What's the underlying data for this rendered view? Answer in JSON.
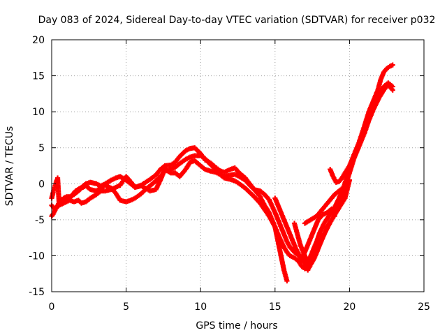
{
  "chart_data": {
    "type": "scatter",
    "title": "Day 083 of 2024, Sidereal Day-to-day VTEC variation (SDTVAR) for receiver p032",
    "xlabel": "GPS time / hours",
    "ylabel": "SDTVAR / TECUs",
    "xlim": [
      0,
      25
    ],
    "ylim": [
      -15,
      20
    ],
    "xticks": [
      0,
      5,
      10,
      15,
      20,
      25
    ],
    "yticks": [
      -15,
      -10,
      -5,
      0,
      5,
      10,
      15,
      20
    ],
    "grid": true,
    "legend": "none",
    "series_color": "#ff0000",
    "marker": "plus",
    "series": [
      {
        "x": [
          0.0,
          0.1,
          0.2,
          0.3,
          0.4,
          0.5,
          0.6,
          0.8,
          1.0,
          1.2,
          1.5,
          1.8,
          2.0,
          2.3,
          2.6,
          3.0,
          3.3,
          3.6,
          4.0,
          4.3,
          4.6,
          5.0,
          5.3,
          5.6,
          6.0,
          6.3,
          6.6,
          7.0,
          7.3,
          7.6,
          8.0,
          8.3,
          8.6,
          9.0,
          9.3,
          9.6,
          10.0,
          10.3,
          10.6,
          11.0,
          11.3,
          11.6,
          12.0,
          12.3,
          12.6,
          13.0,
          13.3,
          13.6,
          14.0,
          14.3,
          14.6,
          15.0,
          15.3,
          15.6,
          15.8,
          16.0,
          16.3,
          16.6,
          16.8,
          17.0,
          17.2,
          17.5,
          17.8,
          18.0,
          18.3,
          18.6,
          19.0,
          19.3,
          19.6,
          20.0,
          20.3,
          20.6,
          21.0,
          21.3,
          21.6,
          22.0,
          22.3,
          22.6,
          22.9
        ],
        "y": [
          -4.5,
          -4.2,
          -3.8,
          -3.3,
          -3.0,
          -2.6,
          -2.3,
          -2.0,
          -1.8,
          -1.8,
          -1.5,
          -1.0,
          -0.6,
          -0.3,
          -0.8,
          -1.0,
          -0.5,
          -0.2,
          -0.6,
          -1.3,
          -2.3,
          -2.5,
          -2.3,
          -2.0,
          -1.4,
          -0.8,
          -0.3,
          0.4,
          1.0,
          1.8,
          2.0,
          2.3,
          2.8,
          3.4,
          3.7,
          3.9,
          3.9,
          3.5,
          2.8,
          2.0,
          1.3,
          0.8,
          0.6,
          0.4,
          0.0,
          -0.6,
          -1.2,
          -1.8,
          -2.7,
          -3.6,
          -4.5,
          -6.0,
          -7.5,
          -8.8,
          -9.5,
          -10.0,
          -10.3,
          -10.8,
          -11.5,
          -11.8,
          -11.0,
          -9.5,
          -8.0,
          -6.8,
          -5.5,
          -4.5,
          -3.3,
          -2.0,
          -0.5,
          2.0,
          4.0,
          5.5,
          7.5,
          9.3,
          10.8,
          12.5,
          13.5,
          14.0,
          13.5
        ]
      },
      {
        "x": [
          0.0,
          0.1,
          0.2,
          0.3,
          0.4,
          0.5,
          0.6,
          0.8,
          1.0,
          1.2,
          1.5,
          1.8,
          2.0,
          2.3,
          2.6,
          3.0,
          3.3,
          3.6,
          4.0,
          4.3,
          4.6,
          5.0,
          5.3,
          5.6,
          6.0,
          6.3,
          6.6,
          7.0,
          7.3,
          7.6,
          8.0,
          8.3,
          8.6,
          9.0,
          9.3,
          9.6,
          10.0,
          10.3,
          10.6,
          11.0,
          11.3,
          11.6,
          12.0,
          12.3,
          12.6,
          13.0,
          13.3,
          13.6,
          14.0,
          14.3,
          14.6,
          15.0,
          15.3,
          15.6,
          15.8,
          16.0,
          16.3,
          16.6,
          16.8,
          17.0,
          17.2,
          17.5,
          17.8,
          18.0,
          18.3,
          18.6,
          19.0,
          19.3,
          19.6,
          20.0,
          20.3,
          20.6,
          21.0,
          21.3,
          21.6,
          22.0,
          22.3,
          22.6,
          22.9
        ],
        "y": [
          -2.0,
          -1.2,
          -0.5,
          0.2,
          0.8,
          -2.8,
          -2.9,
          -2.7,
          -2.5,
          -2.3,
          -2.5,
          -2.3,
          -2.7,
          -2.5,
          -2.0,
          -1.5,
          -1.0,
          -1.0,
          -0.8,
          -0.5,
          -0.2,
          1.0,
          0.3,
          -0.5,
          -0.3,
          -0.6,
          -1.0,
          -0.8,
          0.5,
          2.0,
          1.5,
          1.5,
          1.0,
          2.0,
          3.0,
          3.2,
          2.5,
          2.0,
          1.8,
          1.6,
          1.3,
          1.0,
          1.2,
          1.3,
          1.0,
          0.5,
          -0.2,
          -0.8,
          -1.0,
          -1.5,
          -2.2,
          -4.0,
          -5.5,
          -7.0,
          -8.0,
          -8.8,
          -9.5,
          -10.0,
          -10.5,
          -11.0,
          -12.0,
          -10.8,
          -9.5,
          -8.3,
          -7.0,
          -5.8,
          -4.2,
          -2.8,
          -1.0,
          1.5,
          3.5,
          5.0,
          7.0,
          8.8,
          10.3,
          12.0,
          13.0,
          13.8,
          13.0
        ]
      },
      {
        "x": [
          0.0,
          0.2,
          0.4,
          0.6,
          0.8,
          1.0,
          1.3,
          1.6,
          2.0,
          2.3,
          2.6,
          3.0,
          3.3,
          3.6,
          4.0,
          4.3,
          4.6,
          5.0,
          5.3,
          5.6,
          6.0,
          6.3,
          6.6,
          7.0,
          7.3,
          7.6,
          8.0,
          8.3,
          8.6,
          9.0,
          9.3,
          9.6,
          10.0,
          10.3,
          10.6,
          11.0,
          11.3,
          11.6,
          12.0,
          12.3,
          12.6,
          13.0,
          13.3,
          13.6,
          14.0,
          14.3,
          14.6,
          15.0,
          15.2,
          15.4,
          15.6,
          15.8
        ],
        "y": [
          -3.0,
          -3.5,
          -3.2,
          -2.8,
          -2.5,
          -2.3,
          -1.8,
          -1.0,
          -0.5,
          0.0,
          0.2,
          0.0,
          -0.3,
          0.0,
          0.5,
          0.8,
          1.0,
          0.5,
          0.0,
          -0.5,
          -0.2,
          0.2,
          0.6,
          1.2,
          2.0,
          2.5,
          2.6,
          3.0,
          3.8,
          4.6,
          4.9,
          5.0,
          4.2,
          3.3,
          3.0,
          2.3,
          1.8,
          1.6,
          2.0,
          2.2,
          1.5,
          0.8,
          0.0,
          -0.8,
          -1.8,
          -3.0,
          -4.0,
          -6.0,
          -8.0,
          -10.0,
          -12.0,
          -13.5
        ]
      },
      {
        "x": [
          15.0,
          15.3,
          15.6,
          15.9,
          16.2,
          16.4,
          16.6,
          16.8,
          17.0,
          17.3,
          17.6,
          17.9,
          18.2,
          18.5,
          18.8,
          19.0
        ],
        "y": [
          -2.0,
          -3.5,
          -5.0,
          -6.5,
          -8.0,
          -9.0,
          -9.8,
          -10.3,
          -9.5,
          -8.0,
          -6.5,
          -5.0,
          -4.3,
          -4.0,
          -3.5,
          -4.5
        ]
      },
      {
        "x": [
          16.3,
          16.5,
          16.7,
          17.0,
          17.3,
          17.6,
          17.9,
          18.2,
          18.5,
          18.8,
          19.1,
          19.4,
          19.7,
          20.0
        ],
        "y": [
          -5.5,
          -7.0,
          -8.5,
          -10.0,
          -11.5,
          -10.5,
          -9.0,
          -7.5,
          -6.0,
          -5.0,
          -4.0,
          -3.0,
          -2.0,
          0.5
        ]
      },
      {
        "x": [
          17.0,
          17.4,
          17.8,
          18.2,
          18.6,
          19.0,
          19.3,
          19.6,
          19.8,
          20.0
        ],
        "y": [
          -5.5,
          -5.0,
          -4.5,
          -3.5,
          -2.5,
          -1.5,
          -1.0,
          -0.5,
          0.0,
          0.5
        ]
      },
      {
        "x": [
          18.7,
          18.9,
          19.1,
          19.3,
          19.5,
          19.7,
          20.0,
          20.3,
          20.6,
          21.0,
          21.3,
          21.6,
          21.9,
          22.1,
          22.3,
          22.5,
          22.7,
          22.9
        ],
        "y": [
          2.0,
          1.0,
          0.2,
          0.3,
          0.8,
          1.5,
          2.5,
          4.0,
          5.5,
          8.0,
          10.0,
          11.5,
          13.0,
          14.5,
          15.5,
          16.0,
          16.3,
          16.5
        ]
      }
    ]
  }
}
